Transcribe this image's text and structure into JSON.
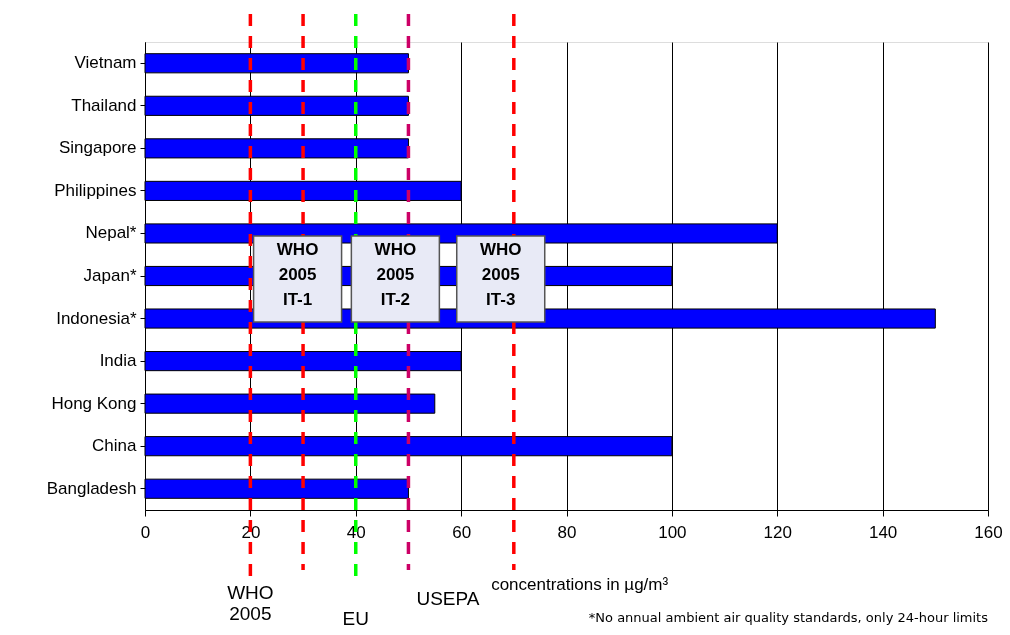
{
  "chart_data": {
    "type": "bar",
    "orientation": "horizontal",
    "categories": [
      "Vietnam",
      "Thailand",
      "Singapore",
      "Philippines",
      "Nepal*",
      "Japan*",
      "Indonesia*",
      "India",
      "Hong Kong",
      "China",
      "Bangladesh"
    ],
    "values": [
      50,
      50,
      50,
      60,
      120,
      100,
      150,
      60,
      55,
      100,
      50
    ],
    "color": "#0000ff",
    "xlabel": "concentrations in µg/m³",
    "xlim": [
      0,
      160
    ],
    "xticks": [
      0,
      20,
      40,
      60,
      80,
      100,
      120,
      140,
      160
    ],
    "grid": "x",
    "ref_lines": [
      {
        "axis": "x",
        "value": 20,
        "label": "WHO\n2005",
        "color": "#ff0000",
        "line_style": "dashed"
      },
      {
        "axis": "x",
        "value": 30,
        "label": null,
        "color": "#ff0000",
        "line_style": "dashed"
      },
      {
        "axis": "x",
        "value": 40,
        "label": "EU",
        "color": "#00ff00",
        "line_style": "dashed"
      },
      {
        "axis": "x",
        "value": 50,
        "label": "USEPA",
        "color": "#cc0066",
        "line_style": "dashed"
      },
      {
        "axis": "x",
        "value": 70,
        "label": null,
        "color": "#ff0000",
        "line_style": "dashed"
      }
    ],
    "annotations": [
      "WHO\n2005\nIT-1",
      "WHO\n2005\nIT-2",
      "WHO\n2005\nIT-3",
      "*No annual ambient air quality standards, only 24-hour limits"
    ]
  }
}
